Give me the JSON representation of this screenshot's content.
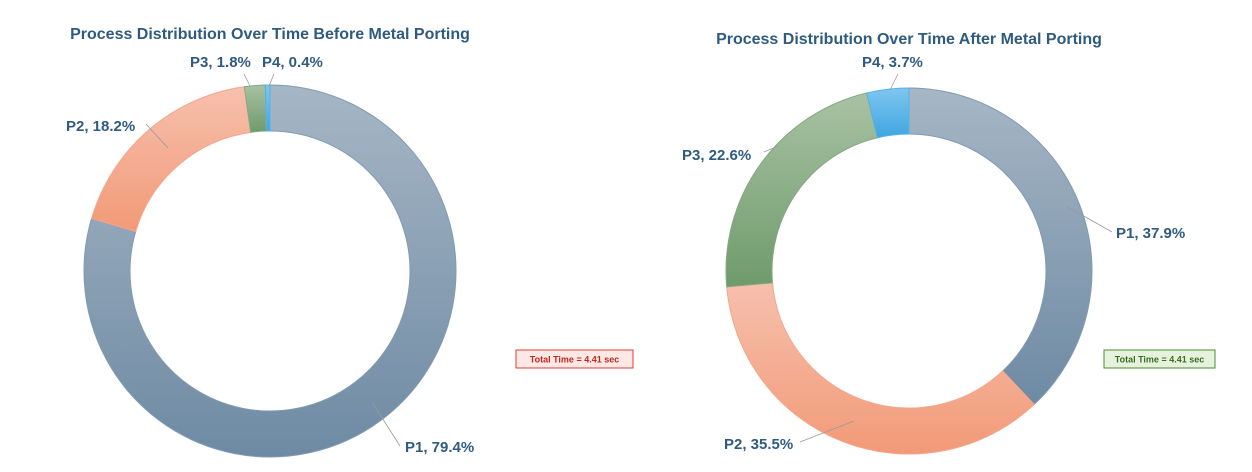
{
  "chart_data": [
    {
      "type": "pie",
      "title": "Process Distribution Over Time Before Metal Porting",
      "categories": [
        "P1",
        "P2",
        "P3",
        "P4"
      ],
      "values": [
        79.4,
        18.2,
        1.8,
        0.4
      ],
      "labels": [
        "P1, 79.4%",
        "P2, 18.2%",
        "P3, 1.8%",
        "P4, 0.4%"
      ],
      "colors": [
        "#7f9bb3",
        "#f4a68a",
        "#86a883",
        "#54b3e8"
      ],
      "annotation": "Total Time = 4.41 sec",
      "annotation_color": "#e03c31"
    },
    {
      "type": "pie",
      "title": "Process Distribution Over Time After Metal Porting",
      "categories": [
        "P1",
        "P2",
        "P3",
        "P4"
      ],
      "values": [
        37.9,
        35.5,
        22.6,
        3.7
      ],
      "labels": [
        "P1, 37.9%",
        "P2, 35.5%",
        "P3, 22.6%",
        "P4, 3.7%"
      ],
      "colors": [
        "#7f9bb3",
        "#f4a68a",
        "#86a883",
        "#54b3e8"
      ],
      "annotation": "Total Time = 4.41 sec",
      "annotation_color": "#4c8c2e"
    }
  ]
}
